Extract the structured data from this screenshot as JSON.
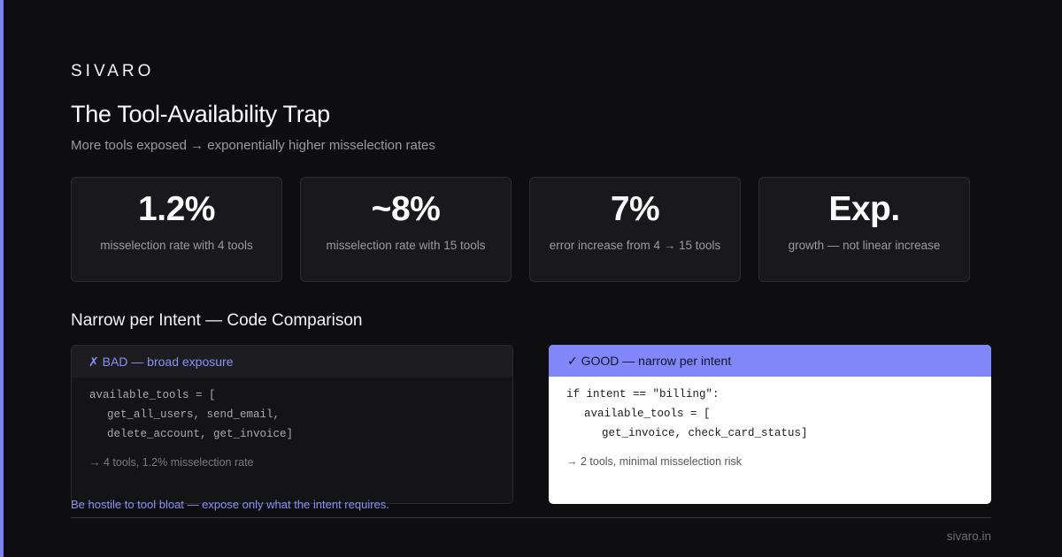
{
  "brand": "SIVARO",
  "title": "The Tool-Availability Trap",
  "subtitle": "More tools exposed → exponentially higher misselection rates",
  "stats": [
    {
      "value": "1.2%",
      "label": "misselection rate with 4 tools"
    },
    {
      "value": "~8%",
      "label": "misselection rate with 15 tools"
    },
    {
      "value": "7%",
      "label": "error increase from 4 → 15 tools"
    },
    {
      "value": "Exp.",
      "label": "growth — not linear increase"
    }
  ],
  "section_title": "Narrow per Intent — Code Comparison",
  "bad": {
    "header": "✗ BAD — broad exposure",
    "code": [
      "available_tools = [",
      "get_all_users, send_email,",
      "delete_account, get_invoice]"
    ],
    "note": "→ 4 tools, 1.2% misselection rate"
  },
  "good": {
    "header": "✓ GOOD — narrow per intent",
    "code": [
      "if intent == \"billing\":",
      "available_tools = [",
      "get_invoice, check_card_status]"
    ],
    "note": "→ 2 tools, minimal misselection risk"
  },
  "caption": "Be hostile to tool bloat — expose only what the intent requires.",
  "footer": "sivaro.in",
  "colors": {
    "accent": "#7c83f5",
    "background": "#0e0e10",
    "good_header": "#8187f7"
  }
}
